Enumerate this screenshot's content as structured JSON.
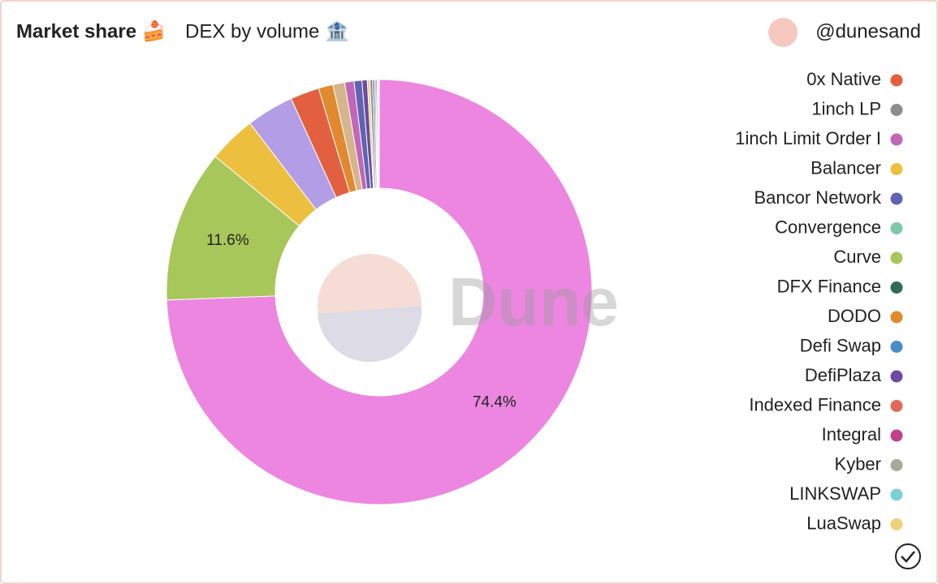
{
  "chart_data": {
    "type": "pie",
    "title": "Market share 🍰",
    "subtitle": "DEX by volume 🏦",
    "author": "@dunesand",
    "watermark": "Dune",
    "categories": [
      null,
      "Curve",
      "Balancer",
      null,
      "0x Native",
      "DODO",
      "Kyber",
      "1inch Limit Order I",
      "Bancor Network",
      "DefiPlaza",
      "LuaSwap",
      "1inch LP",
      "Defi Swap",
      "Indexed Finance",
      "Integral",
      "LINKSWAP",
      "Convergence",
      "DFX Finance"
    ],
    "values": [
      74.4,
      11.6,
      3.6,
      3.6,
      2.2,
      1.1,
      0.9,
      0.7,
      0.6,
      0.4,
      0.2,
      0.2,
      0.15,
      0.1,
      0.1,
      0.05,
      0.05,
      0.05
    ],
    "value_labels": [
      "74.4%",
      "11.6%",
      null,
      null,
      null,
      null,
      null,
      null,
      null,
      null,
      null,
      null,
      null,
      null,
      null,
      null,
      null,
      null
    ],
    "colors": [
      "#ec86e0",
      "#a7c75a",
      "#ecbf3f",
      "#b39de6",
      "#e2603f",
      "#e0892e",
      "#d5b58c",
      "#c266b8",
      "#5f63b1",
      "#6c4aa1",
      "#f0d07a",
      "#8c8c8c",
      "#4a8cc8",
      "#e06a5a",
      "#c0408c",
      "#7dcfd6",
      "#7cc8a8",
      "#2f6b55"
    ],
    "legend": [
      {
        "name": "0x Native",
        "color": "#e2603f"
      },
      {
        "name": "1inch LP",
        "color": "#8c8c8c"
      },
      {
        "name": "1inch Limit Order I",
        "color": "#c266b8"
      },
      {
        "name": "Balancer",
        "color": "#ecbf3f"
      },
      {
        "name": "Bancor Network",
        "color": "#5f63b1"
      },
      {
        "name": "Convergence",
        "color": "#7cc8a8"
      },
      {
        "name": "Curve",
        "color": "#a7c75a"
      },
      {
        "name": "DFX Finance",
        "color": "#2f6b55"
      },
      {
        "name": "DODO",
        "color": "#e0892e"
      },
      {
        "name": "Defi Swap",
        "color": "#4a8cc8"
      },
      {
        "name": "DefiPlaza",
        "color": "#6c4aa1"
      },
      {
        "name": "Indexed Finance",
        "color": "#e06a5a"
      },
      {
        "name": "Integral",
        "color": "#c0408c"
      },
      {
        "name": "Kyber",
        "color": "#a8a898"
      },
      {
        "name": "LINKSWAP",
        "color": "#7dcfd6"
      },
      {
        "name": "LuaSwap",
        "color": "#f0d07a"
      }
    ]
  }
}
